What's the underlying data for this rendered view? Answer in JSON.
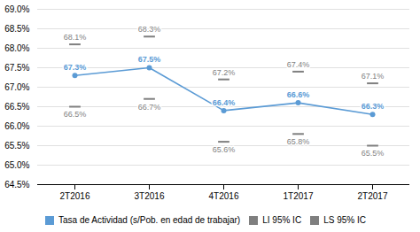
{
  "chart_data": {
    "type": "line",
    "categories": [
      "2T2016",
      "3T2016",
      "4T2016",
      "1T2017",
      "2T2017"
    ],
    "series": [
      {
        "name": "Tasa de Actividad (s/Pob. en edad de trabajar)",
        "type": "line",
        "marker": "o",
        "color": "#5b9bd5",
        "values": [
          67.3,
          67.5,
          66.4,
          66.6,
          66.3
        ],
        "value_labels": [
          "67.3%",
          "67.5%",
          "66.4%",
          "66.6%",
          "66.3%"
        ]
      },
      {
        "name": "LI 95% IC",
        "type": "tick",
        "color": "#7f7f7f",
        "values": [
          66.5,
          66.7,
          65.6,
          65.8,
          65.5
        ],
        "value_labels": [
          "66.5%",
          "66.7%",
          "65.6%",
          "65.8%",
          "65.5%"
        ]
      },
      {
        "name": "LS 95% IC",
        "type": "tick",
        "color": "#7f7f7f",
        "values": [
          68.1,
          68.3,
          67.2,
          67.4,
          67.1
        ],
        "value_labels": [
          "68.1%",
          "68.3%",
          "67.2%",
          "67.4%",
          "67.1%"
        ]
      }
    ],
    "ylim": [
      64.5,
      69.0
    ],
    "yticks": [
      {
        "value": 64.5,
        "label": "64.5%"
      },
      {
        "value": 65.0,
        "label": "65.0%"
      },
      {
        "value": 65.5,
        "label": "65.5%"
      },
      {
        "value": 66.0,
        "label": "66.0%"
      },
      {
        "value": 66.5,
        "label": "66.5%"
      },
      {
        "value": 67.0,
        "label": "67.0%"
      },
      {
        "value": 67.5,
        "label": "67.5%"
      },
      {
        "value": 68.0,
        "label": "68.0%"
      },
      {
        "value": 68.5,
        "label": "68.5%"
      },
      {
        "value": 69.0,
        "label": "69.0%"
      }
    ],
    "grid": true,
    "legend": "bottom",
    "data_labels": true
  }
}
